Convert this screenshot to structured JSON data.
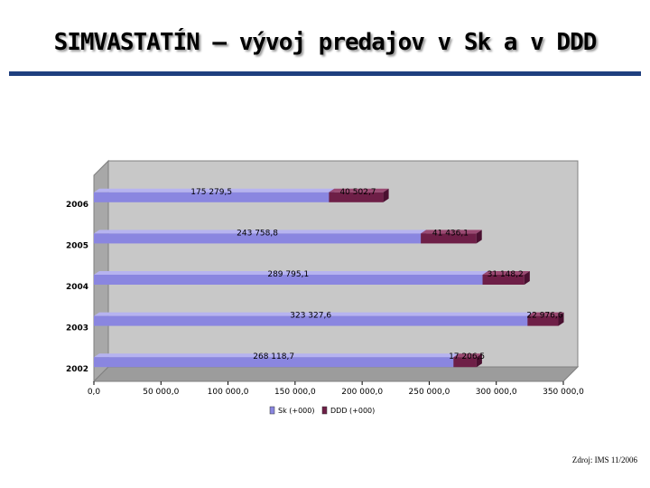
{
  "slide": {
    "title": "SIMVASTATÍN – vývoj predajov v Sk a v DDD",
    "source": "Zdroj: IMS 11/2006"
  },
  "colors": {
    "title_rule": "#1f3f7f",
    "sk": "#8a86e0",
    "ddd": "#6e1f47",
    "plot_wall": "#c8c8c8"
  },
  "chart_data": {
    "type": "bar",
    "orientation": "horizontal",
    "stacked": true,
    "three_d": true,
    "categories": [
      "2002",
      "2003",
      "2004",
      "2005",
      "2006"
    ],
    "series": [
      {
        "name": "Sk (+000)",
        "values": [
          268118.7,
          323327.6,
          289795.1,
          243758.8,
          175279.5
        ],
        "labels": [
          "268 118,7",
          "323 327,6",
          "289 795,1",
          "243 758,8",
          "175 279,5"
        ]
      },
      {
        "name": "DDD (+000)",
        "values": [
          17206.5,
          22976.6,
          31148.2,
          41436.1,
          40502.7
        ],
        "labels": [
          "17 206,5",
          "22 976,6",
          "31 148,2",
          "41 436,1",
          "40 502,7"
        ]
      }
    ],
    "xlim": [
      0,
      350000
    ],
    "xticks": [
      "0,0",
      "50 000,0",
      "100 000,0",
      "150 000,0",
      "200 000,0",
      "250 000,0",
      "300 000,0",
      "350 000,0"
    ],
    "xlabel": "",
    "ylabel": "",
    "legend_position": "bottom",
    "grid": false
  }
}
